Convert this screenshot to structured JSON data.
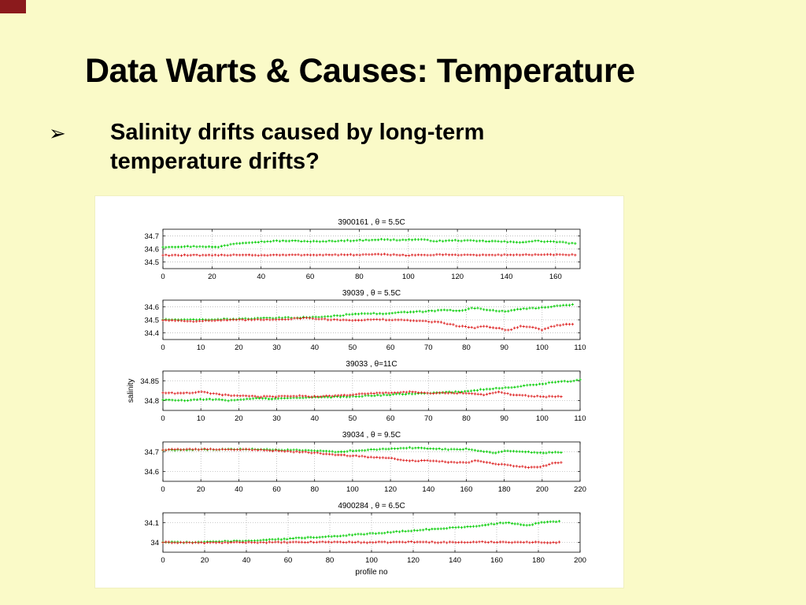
{
  "slide": {
    "title": "Data Warts & Causes: Temperature",
    "bullet": {
      "marker": "➢",
      "text": "Salinity drifts caused by long-term temperature drifts?"
    }
  },
  "colors": {
    "background": "#FAFAC8",
    "corner_accent": "#8B1A1C",
    "panel": "#FFFFFF",
    "green": "#00CC00",
    "red": "#DD2222"
  },
  "chart_data": [
    {
      "type": "scatter",
      "title": "3900161 , θ = 5.5C",
      "xlabel": "",
      "ylabel": "",
      "xlim": [
        0,
        170
      ],
      "ylim": [
        34.45,
        34.75
      ],
      "xticks": [
        0,
        20,
        40,
        60,
        80,
        100,
        120,
        140,
        160
      ],
      "yticks": [
        34.5,
        34.6,
        34.7
      ],
      "grid": true,
      "marker": "+",
      "series": [
        {
          "name": "green",
          "color_key": "green",
          "x": [
            0,
            8,
            16,
            22,
            28,
            34,
            40,
            48,
            56,
            64,
            72,
            80,
            88,
            96,
            104,
            112,
            120,
            128,
            136,
            144,
            152,
            160,
            168
          ],
          "y": [
            34.615,
            34.618,
            34.62,
            34.612,
            34.638,
            34.65,
            34.655,
            34.662,
            34.66,
            34.655,
            34.663,
            34.665,
            34.672,
            34.668,
            34.672,
            34.66,
            34.665,
            34.66,
            34.658,
            34.65,
            34.66,
            34.655,
            34.64
          ]
        },
        {
          "name": "red",
          "color_key": "red",
          "x": [
            0,
            20,
            30,
            40,
            60,
            80,
            90,
            100,
            110,
            120,
            130,
            140,
            150,
            160,
            168
          ],
          "y": [
            34.553,
            34.55,
            34.556,
            34.552,
            34.555,
            34.555,
            34.558,
            34.552,
            34.555,
            34.556,
            34.553,
            34.555,
            34.556,
            34.555,
            34.556
          ]
        }
      ]
    },
    {
      "type": "scatter",
      "title": "39039 , θ = 5.5C",
      "xlabel": "",
      "ylabel": "",
      "xlim": [
        0,
        110
      ],
      "ylim": [
        34.35,
        34.65
      ],
      "xticks": [
        0,
        10,
        20,
        30,
        40,
        50,
        60,
        70,
        80,
        90,
        100,
        110
      ],
      "yticks": [
        34.4,
        34.5,
        34.6
      ],
      "grid": true,
      "marker": "+",
      "series": [
        {
          "name": "green",
          "color_key": "green",
          "x": [
            0,
            8,
            16,
            24,
            32,
            40,
            46,
            50,
            54,
            58,
            62,
            66,
            70,
            74,
            78,
            82,
            86,
            90,
            94,
            98,
            102,
            106,
            108
          ],
          "y": [
            34.502,
            34.5,
            34.505,
            34.51,
            34.515,
            34.52,
            34.53,
            34.545,
            34.55,
            34.545,
            34.555,
            34.56,
            34.565,
            34.575,
            34.57,
            34.59,
            34.575,
            34.565,
            34.58,
            34.59,
            34.6,
            34.61,
            34.615
          ]
        },
        {
          "name": "red",
          "color_key": "red",
          "x": [
            0,
            8,
            16,
            24,
            32,
            38,
            42,
            46,
            50,
            54,
            58,
            62,
            66,
            70,
            74,
            78,
            82,
            85,
            88,
            91,
            94,
            97,
            100,
            103,
            106,
            108
          ],
          "y": [
            34.498,
            34.49,
            34.497,
            34.5,
            34.505,
            34.515,
            34.505,
            34.5,
            34.498,
            34.5,
            34.502,
            34.498,
            34.495,
            34.488,
            34.478,
            34.452,
            34.44,
            34.452,
            34.438,
            34.42,
            34.45,
            34.445,
            34.425,
            34.452,
            34.465,
            34.468
          ]
        }
      ]
    },
    {
      "type": "scatter",
      "title": "39033 , θ=11C",
      "xlabel": "",
      "ylabel": "salinity",
      "xlim": [
        0,
        110
      ],
      "ylim": [
        34.775,
        34.875
      ],
      "xticks": [
        0,
        10,
        20,
        30,
        40,
        50,
        60,
        70,
        80,
        90,
        100,
        110
      ],
      "yticks": [
        34.8,
        34.85
      ],
      "grid": true,
      "marker": "+",
      "series": [
        {
          "name": "green",
          "color_key": "green",
          "x": [
            0,
            6,
            12,
            18,
            24,
            30,
            36,
            42,
            48,
            54,
            60,
            66,
            72,
            78,
            84,
            90,
            96,
            102,
            108,
            110
          ],
          "y": [
            34.802,
            34.8,
            34.804,
            34.8,
            34.806,
            34.804,
            34.808,
            34.808,
            34.81,
            34.812,
            34.815,
            34.818,
            34.82,
            34.822,
            34.828,
            34.832,
            34.838,
            34.845,
            34.85,
            34.852
          ]
        },
        {
          "name": "red",
          "color_key": "red",
          "x": [
            0,
            5,
            10,
            15,
            20,
            25,
            30,
            35,
            40,
            45,
            50,
            55,
            60,
            65,
            70,
            75,
            80,
            85,
            88,
            92,
            96,
            100,
            105
          ],
          "y": [
            34.82,
            34.818,
            34.822,
            34.815,
            34.812,
            34.81,
            34.81,
            34.812,
            34.81,
            34.812,
            34.815,
            34.818,
            34.82,
            34.822,
            34.818,
            34.82,
            34.818,
            34.815,
            34.822,
            34.815,
            34.812,
            34.81,
            34.81
          ]
        }
      ]
    },
    {
      "type": "scatter",
      "title": "39034 , θ = 9.5C",
      "xlabel": "",
      "ylabel": "",
      "xlim": [
        0,
        220
      ],
      "ylim": [
        34.55,
        34.75
      ],
      "xticks": [
        0,
        20,
        40,
        60,
        80,
        100,
        120,
        140,
        160,
        180,
        200,
        220
      ],
      "yticks": [
        34.6,
        34.7
      ],
      "grid": true,
      "marker": "+",
      "series": [
        {
          "name": "green",
          "color_key": "green",
          "x": [
            0,
            10,
            20,
            30,
            40,
            50,
            60,
            70,
            80,
            90,
            100,
            110,
            120,
            130,
            140,
            150,
            160,
            170,
            175,
            180,
            190,
            200,
            210
          ],
          "y": [
            34.708,
            34.71,
            34.712,
            34.712,
            34.713,
            34.712,
            34.71,
            34.708,
            34.705,
            34.7,
            34.705,
            34.71,
            34.715,
            34.72,
            34.718,
            34.712,
            34.715,
            34.7,
            34.695,
            34.705,
            34.7,
            34.695,
            34.698
          ]
        },
        {
          "name": "red",
          "color_key": "red",
          "x": [
            0,
            10,
            20,
            30,
            40,
            50,
            60,
            70,
            80,
            90,
            100,
            110,
            120,
            130,
            140,
            150,
            160,
            165,
            170,
            175,
            180,
            185,
            190,
            195,
            200,
            205,
            210
          ],
          "y": [
            34.71,
            34.712,
            34.713,
            34.712,
            34.712,
            34.71,
            34.705,
            34.7,
            34.695,
            34.685,
            34.68,
            34.672,
            34.668,
            34.655,
            34.655,
            34.648,
            34.645,
            34.655,
            34.65,
            34.64,
            34.635,
            34.628,
            34.625,
            34.62,
            34.625,
            34.64,
            34.645
          ]
        }
      ]
    },
    {
      "type": "scatter",
      "title": "4900284 , θ = 6.5C",
      "xlabel": "profile no",
      "ylabel": "",
      "xlim": [
        0,
        200
      ],
      "ylim": [
        33.95,
        34.15
      ],
      "xticks": [
        0,
        20,
        40,
        60,
        80,
        100,
        120,
        140,
        160,
        180,
        200
      ],
      "yticks": [
        34,
        34.1
      ],
      "grid": true,
      "marker": "+",
      "series": [
        {
          "name": "green",
          "color_key": "green",
          "x": [
            0,
            10,
            20,
            30,
            40,
            50,
            60,
            70,
            80,
            90,
            100,
            110,
            120,
            130,
            140,
            150,
            155,
            160,
            165,
            170,
            175,
            180,
            185,
            190
          ],
          "y": [
            34.002,
            34.0,
            34.003,
            34.005,
            34.008,
            34.012,
            34.018,
            34.025,
            34.03,
            34.038,
            34.045,
            34.052,
            34.06,
            34.068,
            34.075,
            34.082,
            34.09,
            34.095,
            34.1,
            34.092,
            34.085,
            34.1,
            34.105,
            34.108
          ]
        },
        {
          "name": "red",
          "color_key": "red",
          "x": [
            0,
            20,
            40,
            60,
            80,
            100,
            120,
            140,
            160,
            180,
            190
          ],
          "y": [
            34.0,
            33.998,
            34.0,
            34.0,
            34.002,
            34.0,
            34.002,
            34.0,
            34.002,
            34.0,
            34.0
          ]
        }
      ]
    }
  ]
}
